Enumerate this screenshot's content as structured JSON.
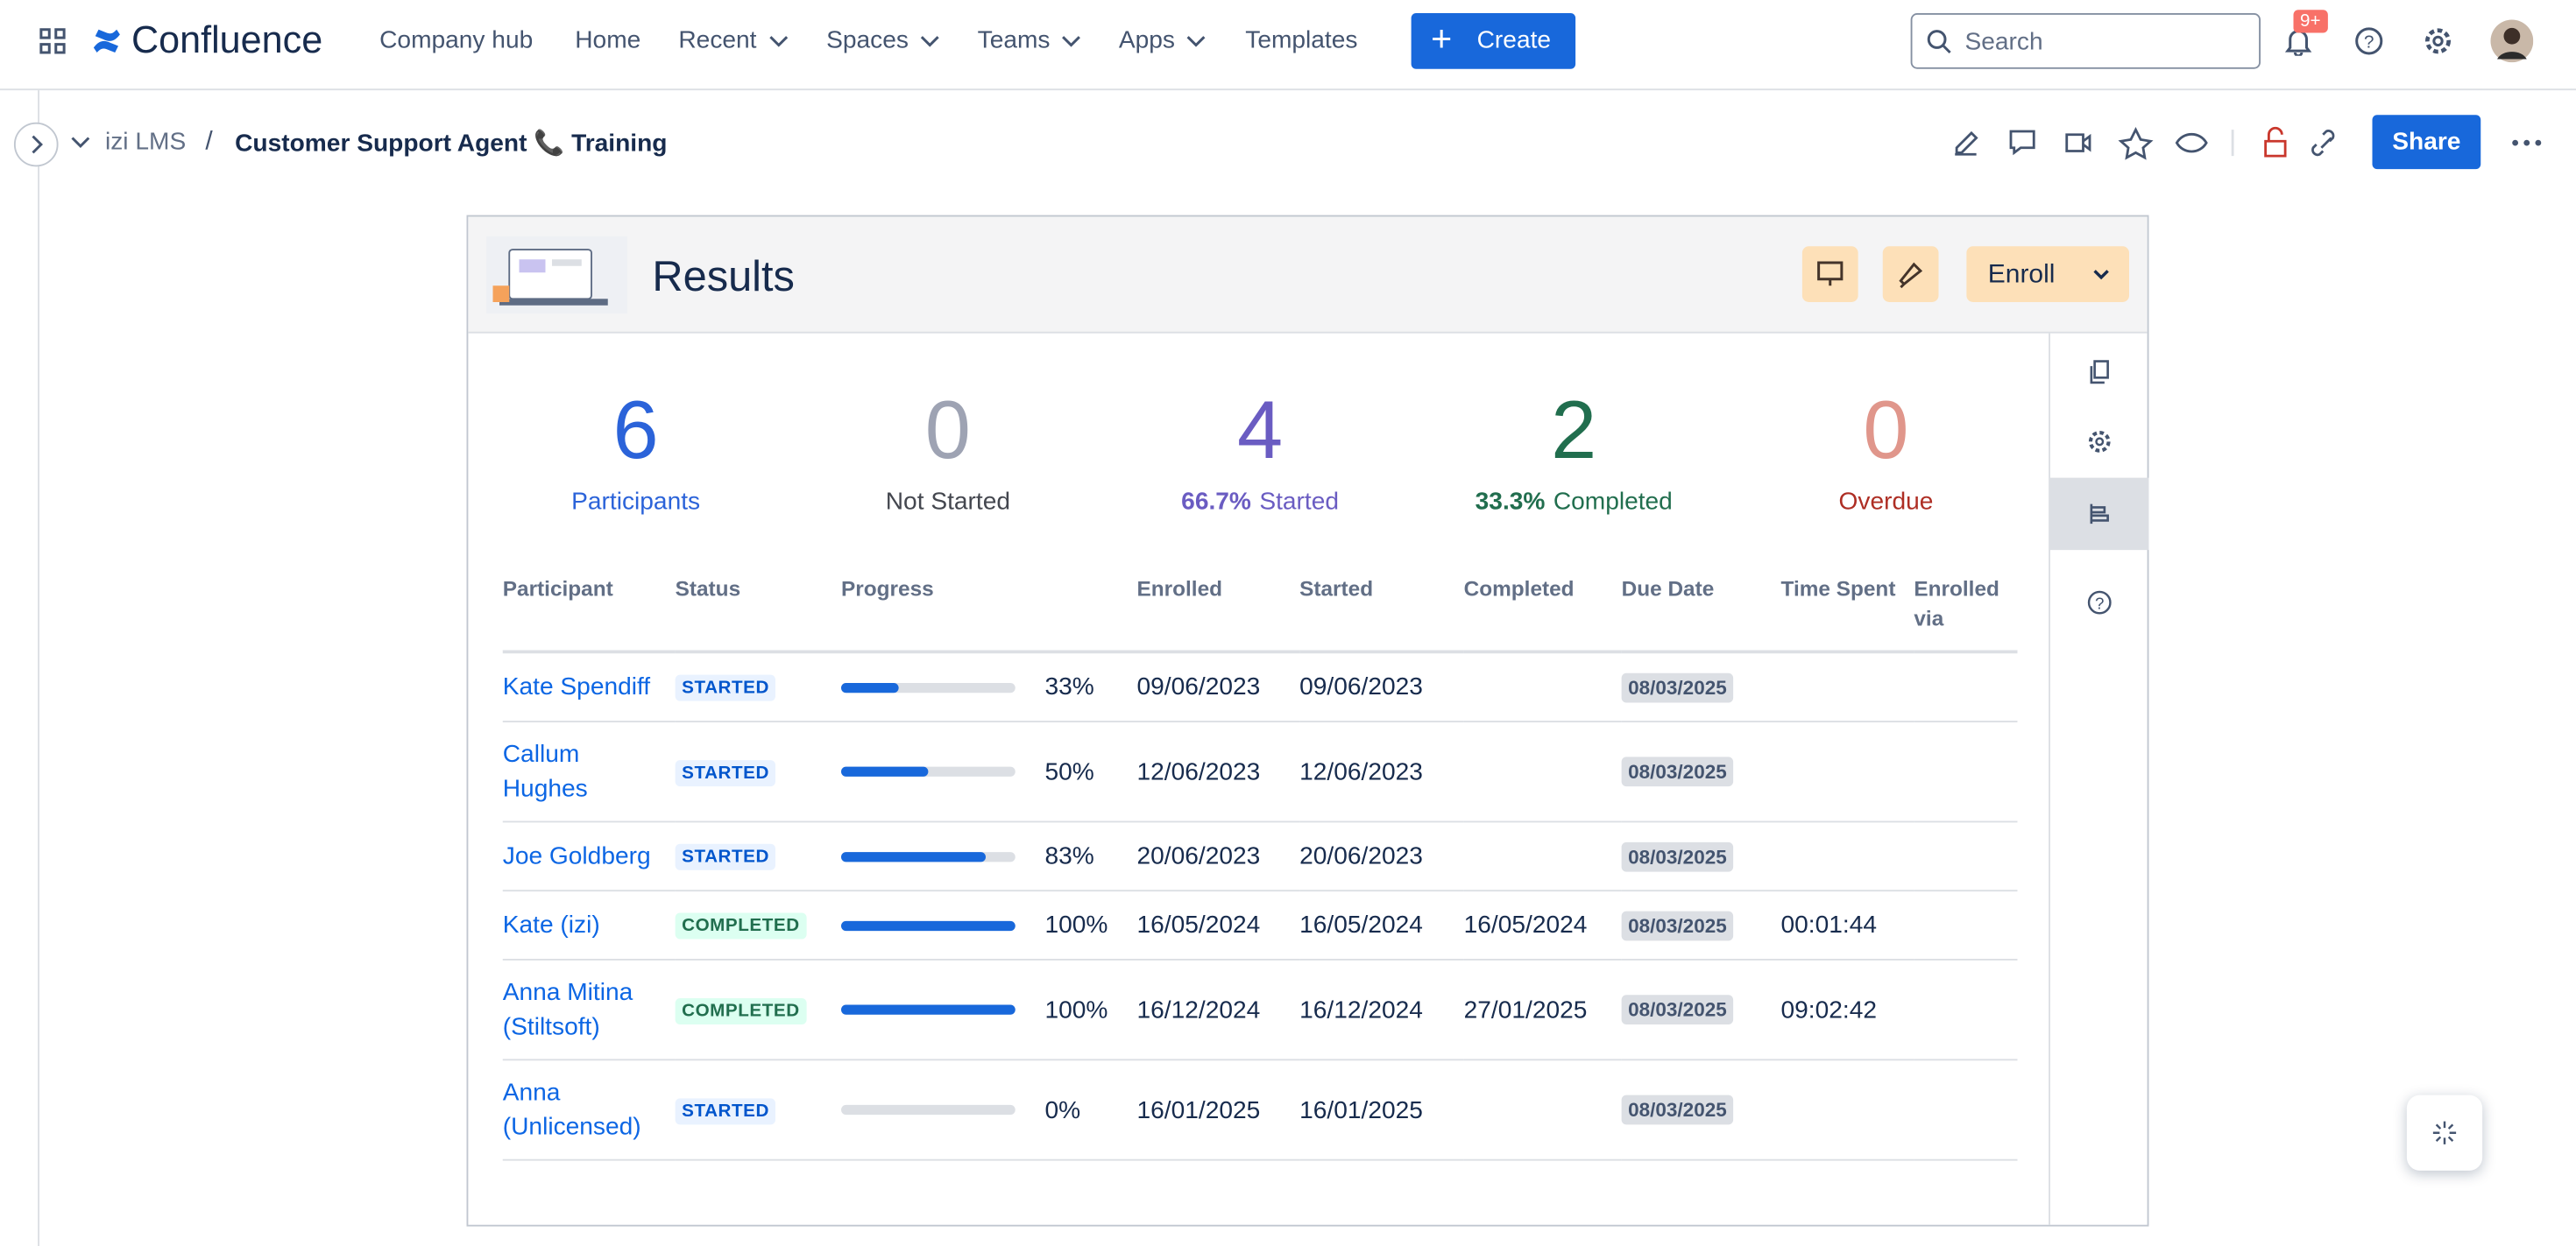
{
  "nav": {
    "product": "Confluence",
    "items": [
      {
        "label": "Company hub"
      },
      {
        "label": "Home"
      },
      {
        "label": "Recent",
        "menu": true
      },
      {
        "label": "Spaces",
        "menu": true
      },
      {
        "label": "Teams",
        "menu": true
      },
      {
        "label": "Apps",
        "menu": true
      },
      {
        "label": "Templates"
      }
    ],
    "create": "Create",
    "search": "Search",
    "notifications": "9+"
  },
  "breadcrumb": {
    "space": "izi LMS",
    "separator": "/",
    "page": "Customer Support Agent 📞 Training"
  },
  "share": "Share",
  "macro": {
    "title": "Results",
    "enroll": "Enroll",
    "stats": [
      {
        "value": "6",
        "label": "Participants",
        "color": "#2b63d9",
        "label_color": "#2b63d9"
      },
      {
        "value": "0",
        "label": "Not Started",
        "color": "#9ea3b3",
        "label_color": "#44474f"
      },
      {
        "value": "4",
        "percent": "66.7%",
        "label": "Started",
        "color": "#6a5cc2",
        "label_color": "#6a5cc2"
      },
      {
        "value": "2",
        "percent": "33.3%",
        "label": "Completed",
        "color": "#216e4e",
        "label_color": "#216e4e"
      },
      {
        "value": "0",
        "label": "Overdue",
        "color": "#e0968b",
        "label_color": "#ae2e24"
      }
    ],
    "table": {
      "headers": [
        "Participant",
        "Status",
        "Progress",
        "Enrolled",
        "Started",
        "Completed",
        "Due Date",
        "Time Spent",
        "Enrolled via"
      ],
      "rows": [
        {
          "participant": "Kate Spendiff",
          "status": "STARTED",
          "progress": 33,
          "progress_label": "33%",
          "enrolled": "09/06/2023",
          "started": "09/06/2023",
          "due": "08/03/2025"
        },
        {
          "participant": "Callum Hughes",
          "status": "STARTED",
          "progress": 50,
          "progress_label": "50%",
          "enrolled": "12/06/2023",
          "started": "12/06/2023",
          "due": "08/03/2025"
        },
        {
          "participant": "Joe Goldberg",
          "status": "STARTED",
          "progress": 83,
          "progress_label": "83%",
          "enrolled": "20/06/2023",
          "started": "20/06/2023",
          "due": "08/03/2025"
        },
        {
          "participant": "Kate (izi)",
          "status": "COMPLETED",
          "progress": 100,
          "progress_label": "100%",
          "enrolled": "16/05/2024",
          "started": "16/05/2024",
          "completed": "16/05/2024",
          "due": "08/03/2025",
          "time_spent": "00:01:44"
        },
        {
          "participant": "Anna Mitina (Stiltsoft)",
          "status": "COMPLETED",
          "progress": 100,
          "progress_label": "100%",
          "enrolled": "16/12/2024",
          "started": "16/12/2024",
          "completed": "27/01/2025",
          "due": "08/03/2025",
          "time_spent": "09:02:42"
        },
        {
          "participant": "Anna (Unlicensed)",
          "status": "STARTED",
          "progress": 0,
          "progress_label": "0%",
          "enrolled": "16/01/2025",
          "started": "16/01/2025",
          "due": "08/03/2025"
        }
      ]
    }
  }
}
